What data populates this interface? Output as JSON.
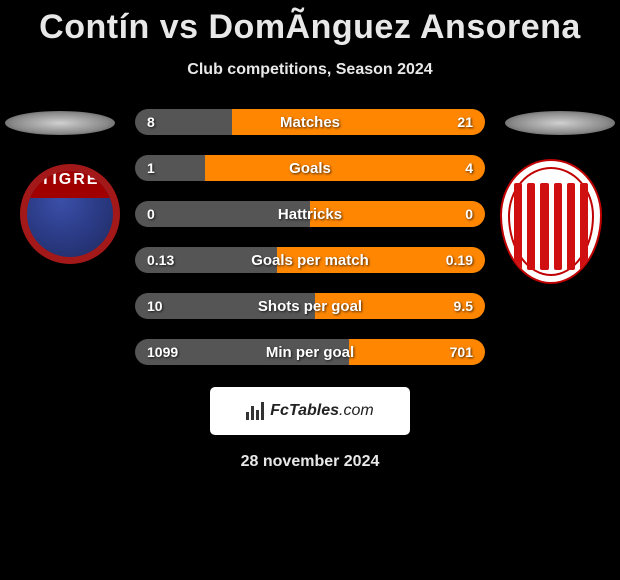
{
  "title": "Contín vs DomÃ­nguez Ansorena",
  "subtitle": "Club competitions, Season 2024",
  "date": "28 november 2024",
  "footer": {
    "brand_main": "FcTables",
    "brand_suffix": ".com"
  },
  "badges": {
    "left": {
      "text": "TIGRE",
      "bg_main": "#2d3d88",
      "border": "#a31818"
    },
    "right": {
      "stripe_color": "#d01010",
      "bg": "#ffffff",
      "border": "#c00000"
    }
  },
  "colors": {
    "bar_left": "#555555",
    "bar_right": "#fe8601",
    "text": "#e8e8e8",
    "background": "#000000"
  },
  "stats": [
    {
      "label": "Matches",
      "left_val": "8",
      "right_val": "21",
      "left_pct": 27.6,
      "right_pct": 72.4
    },
    {
      "label": "Goals",
      "left_val": "1",
      "right_val": "4",
      "left_pct": 20.0,
      "right_pct": 80.0
    },
    {
      "label": "Hattricks",
      "left_val": "0",
      "right_val": "0",
      "left_pct": 50.0,
      "right_pct": 50.0
    },
    {
      "label": "Goals per match",
      "left_val": "0.13",
      "right_val": "0.19",
      "left_pct": 40.6,
      "right_pct": 59.4
    },
    {
      "label": "Shots per goal",
      "left_val": "10",
      "right_val": "9.5",
      "left_pct": 51.3,
      "right_pct": 48.7
    },
    {
      "label": "Min per goal",
      "left_val": "1099",
      "right_val": "701",
      "left_pct": 61.1,
      "right_pct": 38.9
    }
  ]
}
